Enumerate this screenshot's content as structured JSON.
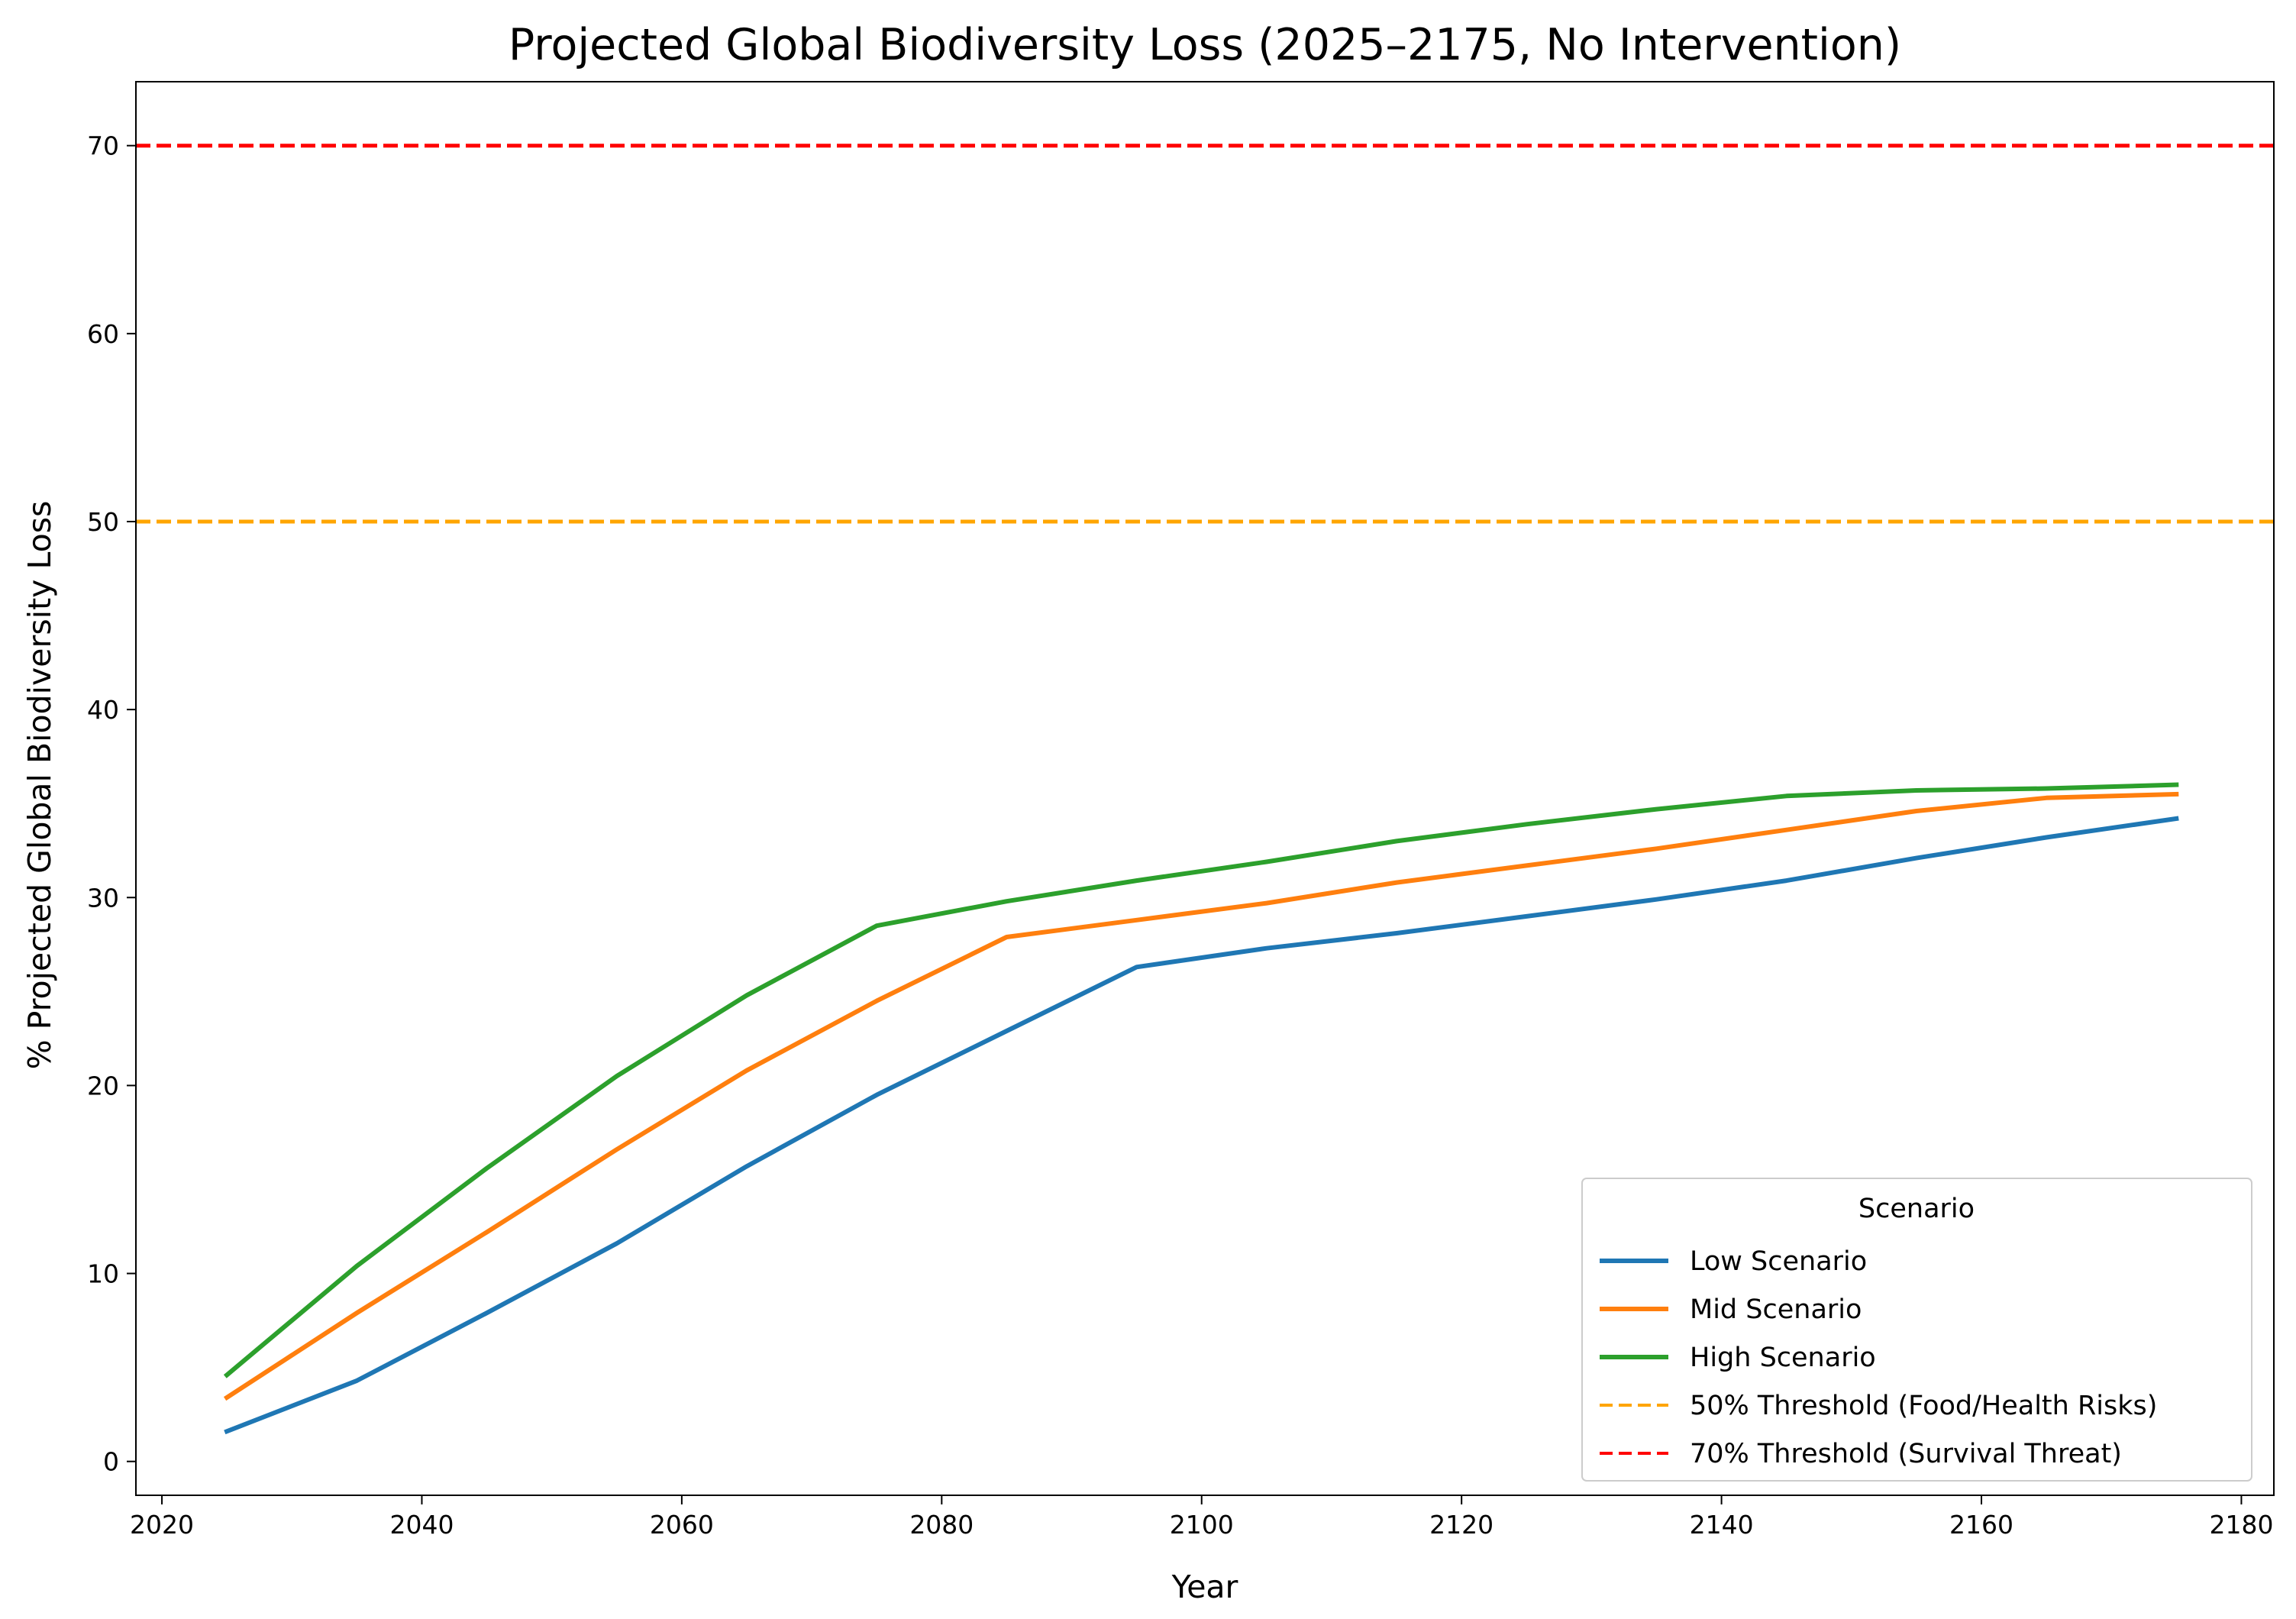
{
  "chart_data": {
    "type": "line",
    "title": "Projected Global Biodiversity Loss (2025–2175, No Intervention)",
    "xlabel": "Year",
    "ylabel": "% Projected Global Biodiversity Loss",
    "xlim": [
      2018,
      2182.5
    ],
    "ylim": [
      -1.8,
      73.4
    ],
    "xticks": [
      2020,
      2040,
      2060,
      2080,
      2100,
      2120,
      2140,
      2160,
      2180
    ],
    "yticks": [
      0,
      10,
      20,
      30,
      40,
      50,
      60,
      70
    ],
    "x": [
      2025,
      2035,
      2045,
      2055,
      2065,
      2075,
      2085,
      2095,
      2105,
      2115,
      2125,
      2135,
      2145,
      2155,
      2165,
      2175
    ],
    "series": [
      {
        "name": "Low Scenario",
        "color": "#1f77b4",
        "values": [
          1.6,
          4.3,
          7.9,
          11.6,
          15.7,
          19.5,
          22.9,
          26.3,
          27.3,
          28.1,
          29.0,
          29.9,
          30.9,
          32.1,
          33.2,
          34.2
        ]
      },
      {
        "name": "Mid Scenario",
        "color": "#ff7f0e",
        "values": [
          3.4,
          7.9,
          12.2,
          16.6,
          20.8,
          24.5,
          27.9,
          28.8,
          29.7,
          30.8,
          31.7,
          32.6,
          33.6,
          34.6,
          35.3,
          35.5
        ]
      },
      {
        "name": "High Scenario",
        "color": "#2ca02c",
        "values": [
          4.6,
          10.4,
          15.6,
          20.5,
          24.8,
          28.5,
          29.8,
          30.9,
          31.9,
          33.0,
          33.9,
          34.7,
          35.4,
          35.7,
          35.8,
          36.0
        ]
      }
    ],
    "thresholds": [
      {
        "name": "50% Threshold (Food/Health Risks)",
        "value": 50,
        "color": "#ffa500",
        "style": "dashed"
      },
      {
        "name": "70% Threshold (Survival Threat)",
        "value": 70,
        "color": "#ff0000",
        "style": "dashed"
      }
    ],
    "legend": {
      "title": "Scenario",
      "placement": "lower-right"
    },
    "grid": false
  }
}
